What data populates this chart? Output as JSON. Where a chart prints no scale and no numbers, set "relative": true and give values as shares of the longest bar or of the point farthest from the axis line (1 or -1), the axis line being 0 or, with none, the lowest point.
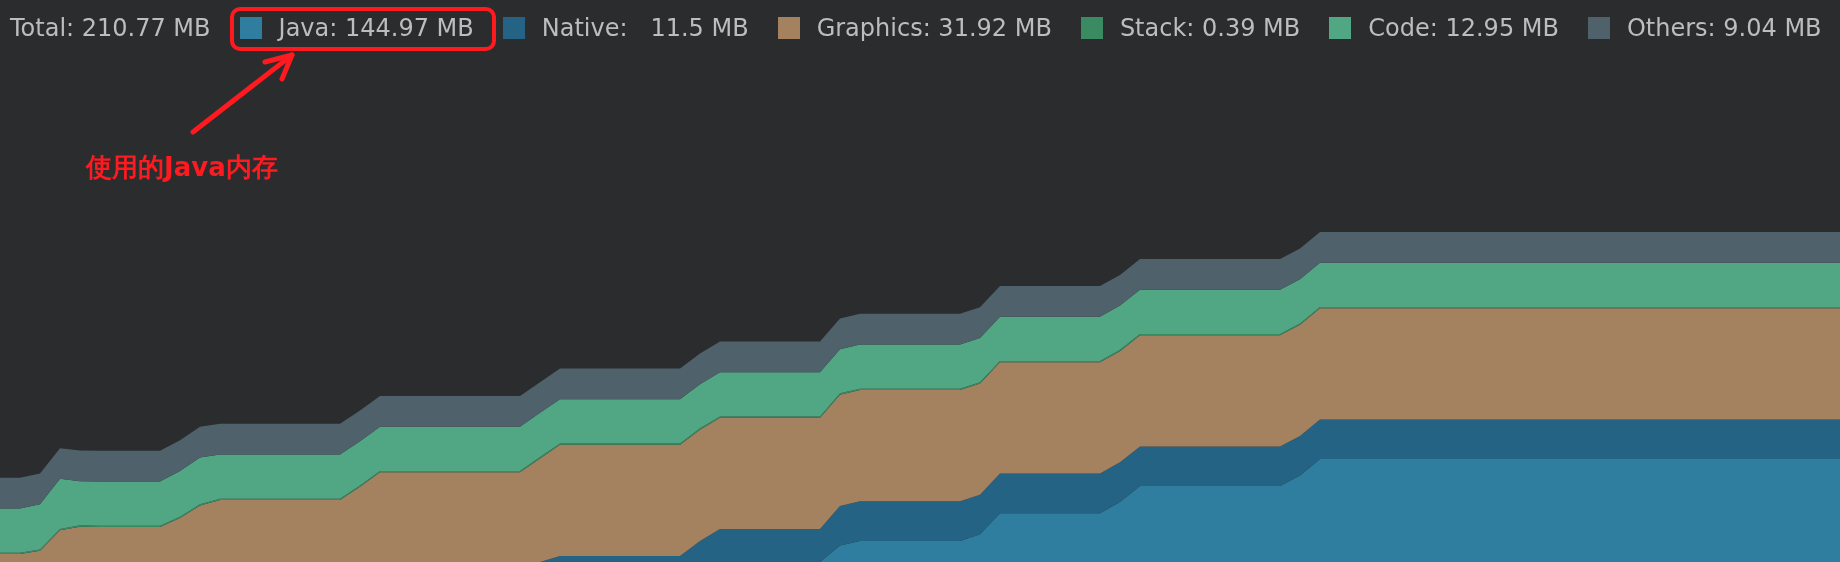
{
  "chart_data": {
    "type": "area",
    "stacked": true,
    "relative": true,
    "legend": "top",
    "legend_title": "Total: 210.77 MB",
    "annotations": [
      "使用的Java内存"
    ],
    "categories": [
      null,
      null,
      null,
      null,
      null,
      null,
      null,
      null,
      null,
      null,
      null,
      null,
      null,
      null,
      null,
      null,
      null,
      null,
      null,
      null,
      null,
      null,
      null,
      null,
      null,
      null,
      null,
      null,
      null,
      null,
      null,
      null,
      null,
      null,
      null,
      null,
      null,
      null,
      null,
      null,
      null,
      null,
      null,
      null,
      null,
      null,
      null,
      null,
      null,
      null,
      null,
      null,
      null,
      null,
      null,
      null,
      null,
      null,
      null,
      null,
      null,
      null,
      null,
      null,
      null,
      null,
      null,
      null,
      null,
      null,
      null,
      null,
      null,
      null,
      null,
      null,
      null,
      null,
      null,
      null,
      null,
      null,
      null,
      null,
      null,
      null,
      null,
      null,
      null,
      null,
      null,
      null,
      null
    ],
    "series": [
      {
        "name": "Java: 144.97 MB",
        "color": "#2f7e9f",
        "values": [
          0,
          0,
          0,
          0,
          0,
          0,
          0,
          0,
          0,
          0,
          0,
          0,
          0,
          0,
          0,
          0,
          0,
          0,
          0,
          0,
          0,
          0,
          0,
          0,
          0,
          0,
          0,
          0,
          0,
          0,
          0,
          0,
          0,
          0,
          0,
          0,
          0,
          0,
          0,
          0,
          0,
          0,
          0.05,
          0.064,
          0.064,
          0.064,
          0.064,
          0.064,
          0.064,
          0.084,
          0.148,
          0.148,
          0.148,
          0.148,
          0.148,
          0.148,
          0.182,
          0.23,
          0.23,
          0.23,
          0.23,
          0.23,
          0.23,
          0.23,
          0.23,
          0.262,
          0.312,
          0.312,
          0.312,
          0.312,
          0.312,
          0.312,
          0.312,
          0.312,
          0.312,
          0.312,
          0.312,
          0.312,
          0.312,
          0.312,
          0.312,
          0.312,
          0.312,
          0.312,
          0.312,
          0.312,
          0.312,
          0.312,
          0.312,
          0.312,
          0.312,
          0.312,
          0.312
        ]
      },
      {
        "name": "Native:   11.5 MB",
        "color": "#246383",
        "values": [
          0,
          0,
          0,
          0,
          0,
          0,
          0,
          0,
          0,
          0,
          0,
          0,
          0,
          0,
          0,
          0,
          0,
          0,
          0,
          0,
          0,
          0,
          0,
          0,
          0,
          0,
          0,
          0,
          0.018,
          0.018,
          0.018,
          0.018,
          0.018,
          0.018,
          0.018,
          0.064,
          0.1,
          0.1,
          0.1,
          0.1,
          0.1,
          0.1,
          0.12,
          0.12,
          0.12,
          0.12,
          0.12,
          0.12,
          0.12,
          0.12,
          0.12,
          0.12,
          0.12,
          0.12,
          0.12,
          0.12,
          0.12,
          0.12,
          0.12,
          0.12,
          0.12,
          0.12,
          0.12,
          0.12,
          0.12,
          0.12,
          0.12,
          0.12,
          0.12,
          0.12,
          0.12,
          0.12,
          0.12,
          0.12,
          0.12,
          0.12,
          0.12,
          0.12,
          0.12,
          0.12,
          0.12,
          0.12,
          0.12,
          0.12,
          0.12,
          0.12,
          0.12,
          0.12,
          0.12,
          0.12,
          0.12,
          0.12,
          0.12
        ]
      },
      {
        "name": "Graphics: 31.92 MB",
        "color": "#a5825f",
        "values": [
          0.024,
          0.024,
          0.034,
          0.096,
          0.107,
          0.106,
          0.106,
          0.106,
          0.106,
          0.133,
          0.171,
          0.188,
          0.188,
          0.188,
          0.188,
          0.188,
          0.188,
          0.188,
          0.228,
          0.272,
          0.272,
          0.272,
          0.272,
          0.272,
          0.272,
          0.272,
          0.272,
          0.314,
          0.337,
          0.337,
          0.337,
          0.337,
          0.337,
          0.337,
          0.337,
          0.337,
          0.337,
          0.337,
          0.337,
          0.337,
          0.337,
          0.337,
          0.337,
          0.337,
          0.337,
          0.337,
          0.337,
          0.337,
          0.337,
          0.337,
          0.337,
          0.337,
          0.337,
          0.337,
          0.337,
          0.337,
          0.337,
          0.337,
          0.337,
          0.337,
          0.337,
          0.337,
          0.337,
          0.337,
          0.337,
          0.337,
          0.337,
          0.337,
          0.337,
          0.337,
          0.337,
          0.337,
          0.337,
          0.337,
          0.337,
          0.337,
          0.337,
          0.337,
          0.337,
          0.337,
          0.337,
          0.337,
          0.337,
          0.337,
          0.337,
          0.337,
          0.337,
          0.337,
          0.337,
          0.337,
          0.337,
          0.337,
          0.337
        ]
      },
      {
        "name": "Stack: 0.39 MB",
        "color": "#3a8a62",
        "values": [
          0.004,
          0.004,
          0.004,
          0.004,
          0.004,
          0.004,
          0.004,
          0.004,
          0.004,
          0.004,
          0.004,
          0.004,
          0.004,
          0.004,
          0.004,
          0.004,
          0.004,
          0.004,
          0.004,
          0.004,
          0.004,
          0.004,
          0.004,
          0.004,
          0.004,
          0.004,
          0.004,
          0.004,
          0.004,
          0.004,
          0.004,
          0.004,
          0.004,
          0.004,
          0.004,
          0.004,
          0.004,
          0.004,
          0.004,
          0.004,
          0.004,
          0.004,
          0.004,
          0.004,
          0.004,
          0.004,
          0.004,
          0.004,
          0.004,
          0.004,
          0.004,
          0.004,
          0.004,
          0.004,
          0.004,
          0.004,
          0.004,
          0.004,
          0.004,
          0.004,
          0.004,
          0.004,
          0.004,
          0.004,
          0.004,
          0.004,
          0.004,
          0.004,
          0.004,
          0.004,
          0.004,
          0.004,
          0.004,
          0.004,
          0.004,
          0.004,
          0.004,
          0.004,
          0.004,
          0.004,
          0.004,
          0.004,
          0.004,
          0.004,
          0.004,
          0.004,
          0.004,
          0.004,
          0.004,
          0.004,
          0.004,
          0.004,
          0.004
        ]
      },
      {
        "name": "Code: 12.95 MB",
        "color": "#51a784",
        "values": [
          0.134,
          0.134,
          0.137,
          0.152,
          0.134,
          0.134,
          0.134,
          0.134,
          0.134,
          0.139,
          0.142,
          0.134,
          0.134,
          0.134,
          0.134,
          0.134,
          0.134,
          0.134,
          0.134,
          0.134,
          0.134,
          0.134,
          0.134,
          0.134,
          0.134,
          0.134,
          0.134,
          0.134,
          0.134,
          0.134,
          0.134,
          0.134,
          0.134,
          0.134,
          0.134,
          0.134,
          0.134,
          0.134,
          0.134,
          0.134,
          0.134,
          0.134,
          0.134,
          0.134,
          0.134,
          0.134,
          0.134,
          0.134,
          0.134,
          0.134,
          0.134,
          0.134,
          0.134,
          0.134,
          0.134,
          0.134,
          0.134,
          0.134,
          0.134,
          0.134,
          0.134,
          0.134,
          0.134,
          0.134,
          0.134,
          0.134,
          0.134,
          0.134,
          0.134,
          0.134,
          0.134,
          0.134,
          0.134,
          0.134,
          0.134,
          0.134,
          0.134,
          0.134,
          0.134,
          0.134,
          0.134,
          0.134,
          0.134,
          0.134,
          0.134,
          0.134,
          0.134,
          0.134,
          0.134,
          0.134,
          0.134,
          0.134,
          0.134
        ]
      },
      {
        "name": "Others: 9.04 MB",
        "color": "#4f616b",
        "values": [
          0.093,
          0.093,
          0.093,
          0.093,
          0.093,
          0.093,
          0.093,
          0.093,
          0.093,
          0.093,
          0.093,
          0.093,
          0.093,
          0.093,
          0.093,
          0.093,
          0.093,
          0.093,
          0.093,
          0.093,
          0.093,
          0.093,
          0.093,
          0.093,
          0.093,
          0.093,
          0.093,
          0.093,
          0.093,
          0.093,
          0.093,
          0.093,
          0.093,
          0.093,
          0.093,
          0.093,
          0.093,
          0.093,
          0.093,
          0.093,
          0.093,
          0.093,
          0.093,
          0.093,
          0.093,
          0.093,
          0.093,
          0.093,
          0.093,
          0.093,
          0.093,
          0.093,
          0.093,
          0.093,
          0.093,
          0.093,
          0.093,
          0.093,
          0.093,
          0.093,
          0.093,
          0.093,
          0.093,
          0.093,
          0.093,
          0.093,
          0.093,
          0.093,
          0.093,
          0.093,
          0.093,
          0.093,
          0.093,
          0.093,
          0.093,
          0.093,
          0.093,
          0.093,
          0.093,
          0.093,
          0.093,
          0.093,
          0.093,
          0.093,
          0.093,
          0.093,
          0.093,
          0.093,
          0.093,
          0.093,
          0.093,
          0.093,
          0.093
        ]
      }
    ]
  }
}
